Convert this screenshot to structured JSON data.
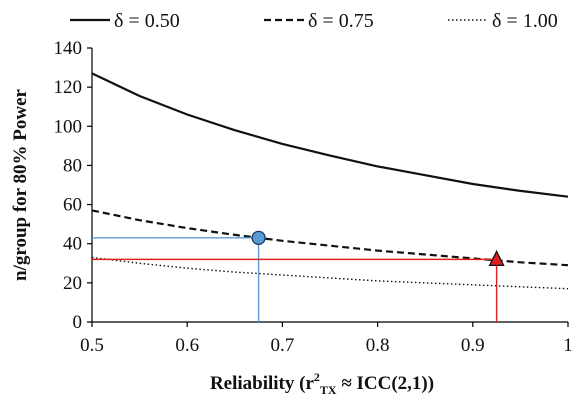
{
  "chart_data": {
    "type": "line",
    "title": "",
    "xlabel": {
      "main": "Reliability (r",
      "sup": "2",
      "sub": "TX",
      "rest": " ≈ ICC(2,1))"
    },
    "ylabel": "n/group for 80% Power",
    "xlim": [
      0.5,
      1.0
    ],
    "ylim": [
      0,
      140
    ],
    "x_ticks": [
      "0.5",
      "0.6",
      "0.7",
      "0.8",
      "0.9",
      "1"
    ],
    "y_ticks": [
      "0",
      "20",
      "40",
      "60",
      "80",
      "100",
      "120",
      "140"
    ],
    "x_tick_values": [
      0.5,
      0.6,
      0.7,
      0.8,
      0.9,
      1.0
    ],
    "y_tick_values": [
      0,
      20,
      40,
      60,
      80,
      100,
      120,
      140
    ],
    "legend_position": "top",
    "series": [
      {
        "name": "δ = 0.50",
        "style": "solid",
        "x": [
          0.5,
          0.55,
          0.6,
          0.65,
          0.7,
          0.75,
          0.8,
          0.85,
          0.9,
          0.95,
          1.0
        ],
        "values": [
          127,
          115.5,
          106,
          98,
          91,
          85,
          79.5,
          75,
          70.5,
          67,
          64
        ]
      },
      {
        "name": "δ = 0.75",
        "style": "dashed",
        "x": [
          0.5,
          0.55,
          0.6,
          0.65,
          0.7,
          0.75,
          0.8,
          0.85,
          0.9,
          0.95,
          1.0
        ],
        "values": [
          57,
          52,
          48,
          44.5,
          41.5,
          39,
          36.5,
          34.5,
          32.5,
          30.5,
          29
        ]
      },
      {
        "name": "δ = 1.00",
        "style": "dotted",
        "x": [
          0.5,
          0.55,
          0.6,
          0.65,
          0.7,
          0.75,
          0.8,
          0.85,
          0.9,
          0.95,
          1.0
        ],
        "values": [
          33,
          30,
          27.5,
          25.5,
          24,
          22.5,
          21,
          20,
          19,
          18,
          17
        ]
      }
    ],
    "annotations": [
      {
        "name": "blue-circle-marker",
        "shape": "circle",
        "color": "#5b9bd5",
        "line_color": "#5b9bd5",
        "x": 0.675,
        "y": 43
      },
      {
        "name": "red-triangle-marker",
        "shape": "triangle",
        "color": "#e02020",
        "line_color": "#e02020",
        "x": 0.925,
        "y": 32
      }
    ]
  }
}
